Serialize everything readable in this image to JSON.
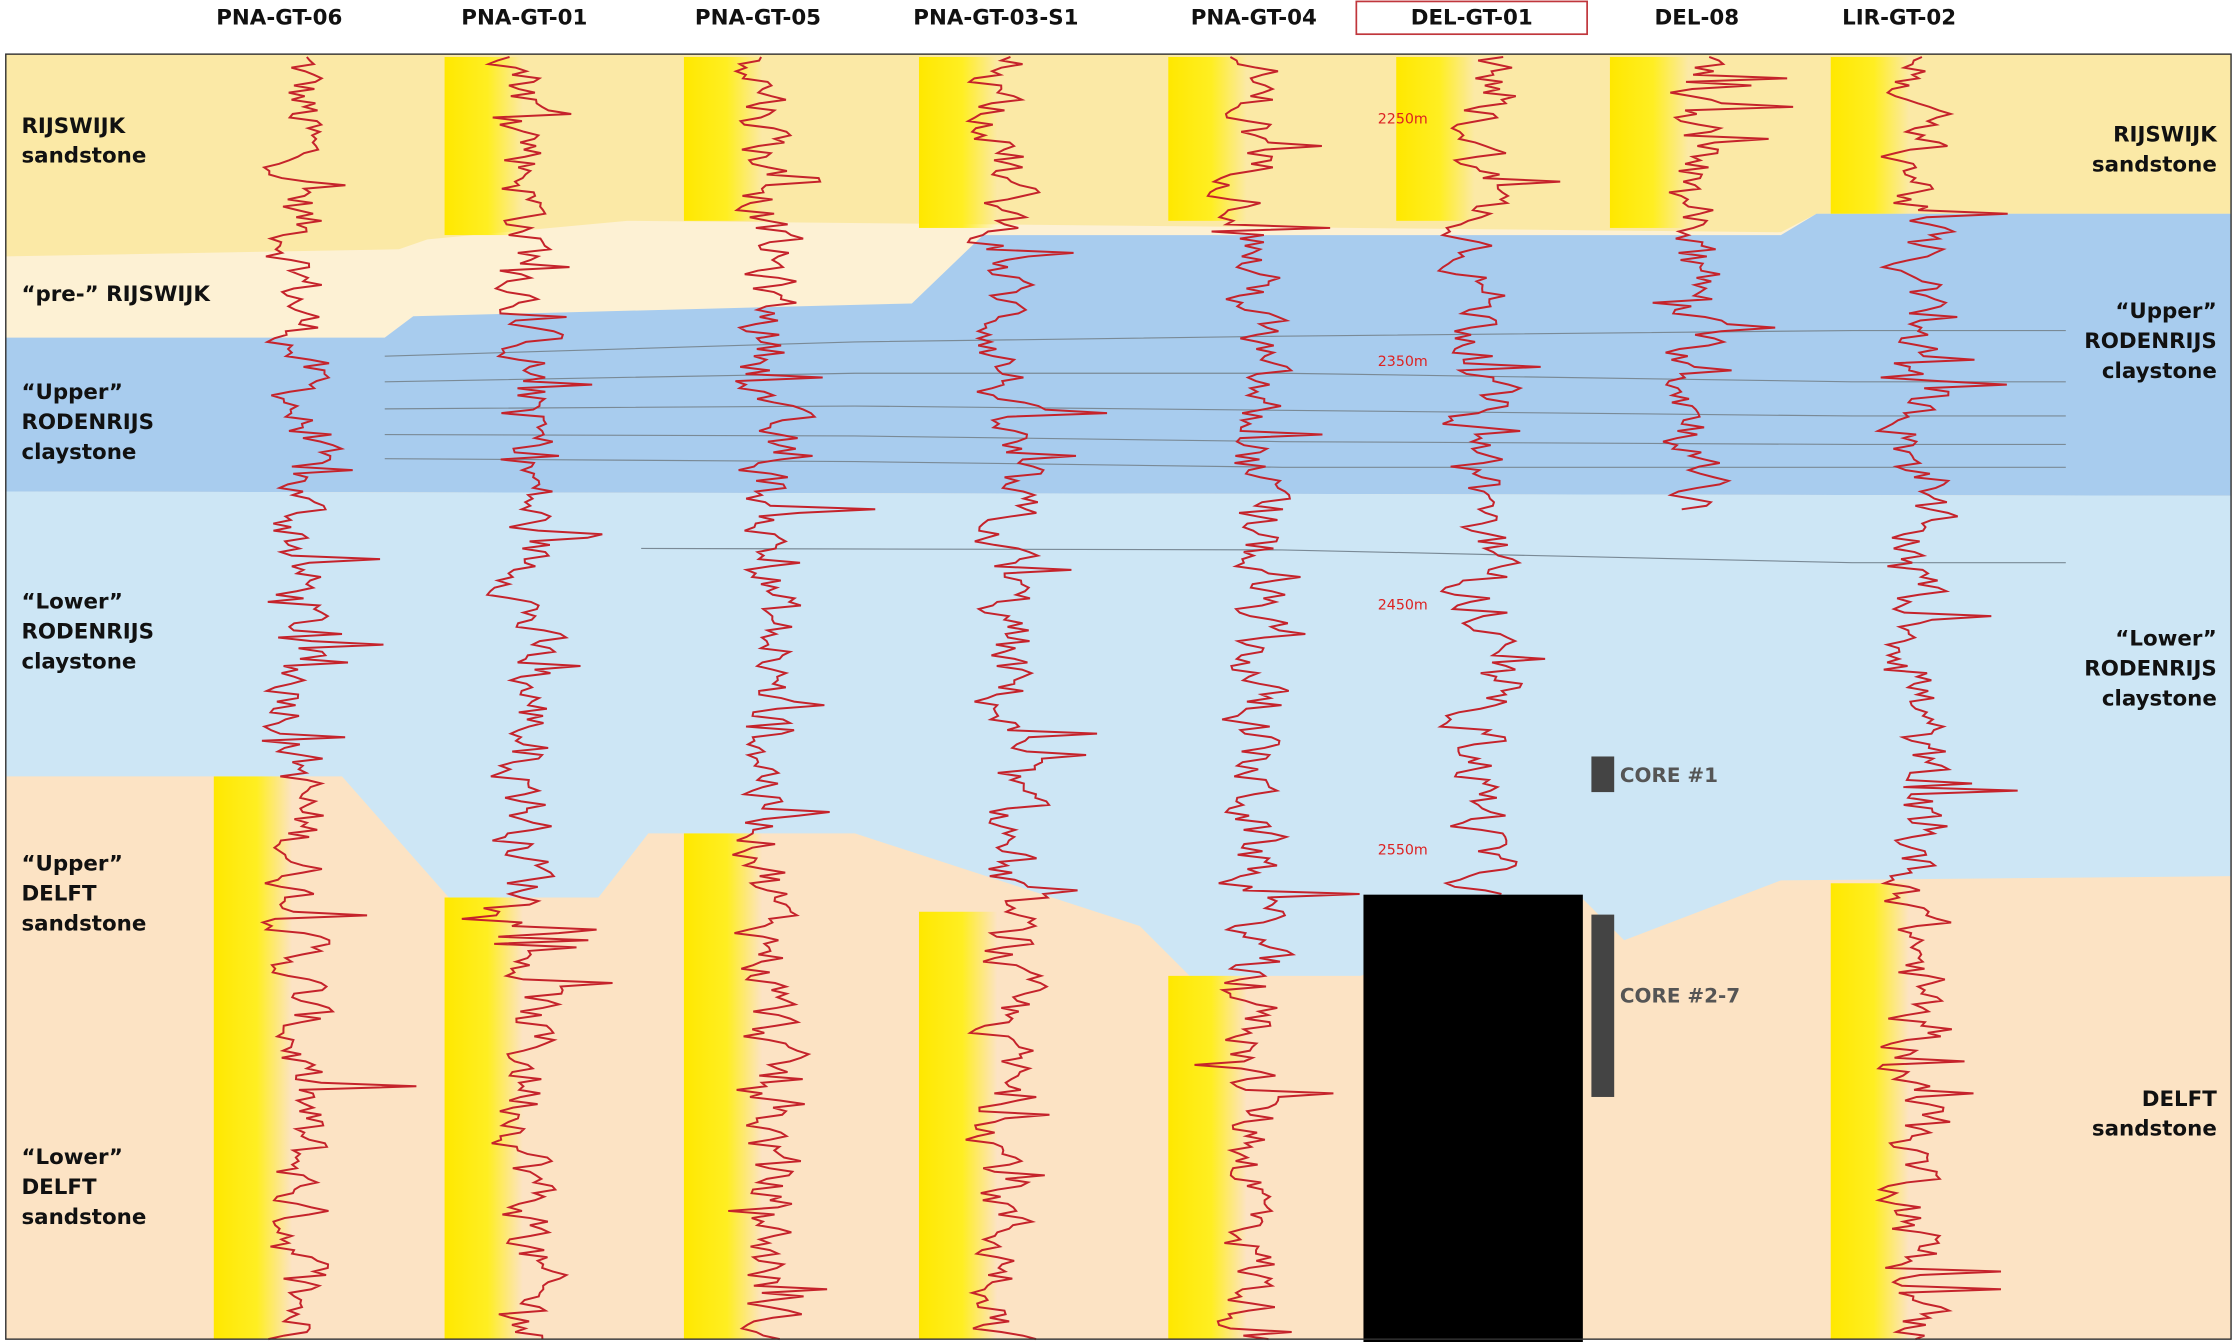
{
  "wells": [
    {
      "name": "PNA-GT-06"
    },
    {
      "name": "PNA-GT-01"
    },
    {
      "name": "PNA-GT-05"
    },
    {
      "name": "PNA-GT-03-S1"
    },
    {
      "name": "PNA-GT-04"
    },
    {
      "name": "DEL-GT-01",
      "highlighted": true
    },
    {
      "name": "DEL-08"
    },
    {
      "name": "LIR-GT-02"
    }
  ],
  "left_labels": [
    {
      "lines": [
        "RIJSWIJK",
        "sandstone"
      ]
    },
    {
      "lines": [
        "“pre-” RIJSWIJK"
      ]
    },
    {
      "lines": [
        "“Upper”",
        "RODENRIJS",
        "claystone"
      ]
    },
    {
      "lines": [
        "“Lower”",
        "RODENRIJS",
        "claystone"
      ]
    },
    {
      "lines": [
        "“Upper”",
        "DELFT",
        "sandstone"
      ]
    },
    {
      "lines": [
        "“Lower”",
        "DELFT",
        "sandstone"
      ]
    }
  ],
  "right_labels": [
    {
      "lines": [
        "RIJSWIJK",
        "sandstone"
      ]
    },
    {
      "lines": [
        "“Upper”",
        "RODENRIJS",
        "claystone"
      ]
    },
    {
      "lines": [
        "“Lower”",
        "RODENRIJS",
        "claystone"
      ]
    },
    {
      "lines": [
        "DELFT",
        "sandstone"
      ]
    }
  ],
  "depth_markers": [
    "2250m",
    "2350m",
    "2450m",
    "2550m"
  ],
  "cores": [
    "CORE #1",
    "CORE #2-7"
  ]
}
